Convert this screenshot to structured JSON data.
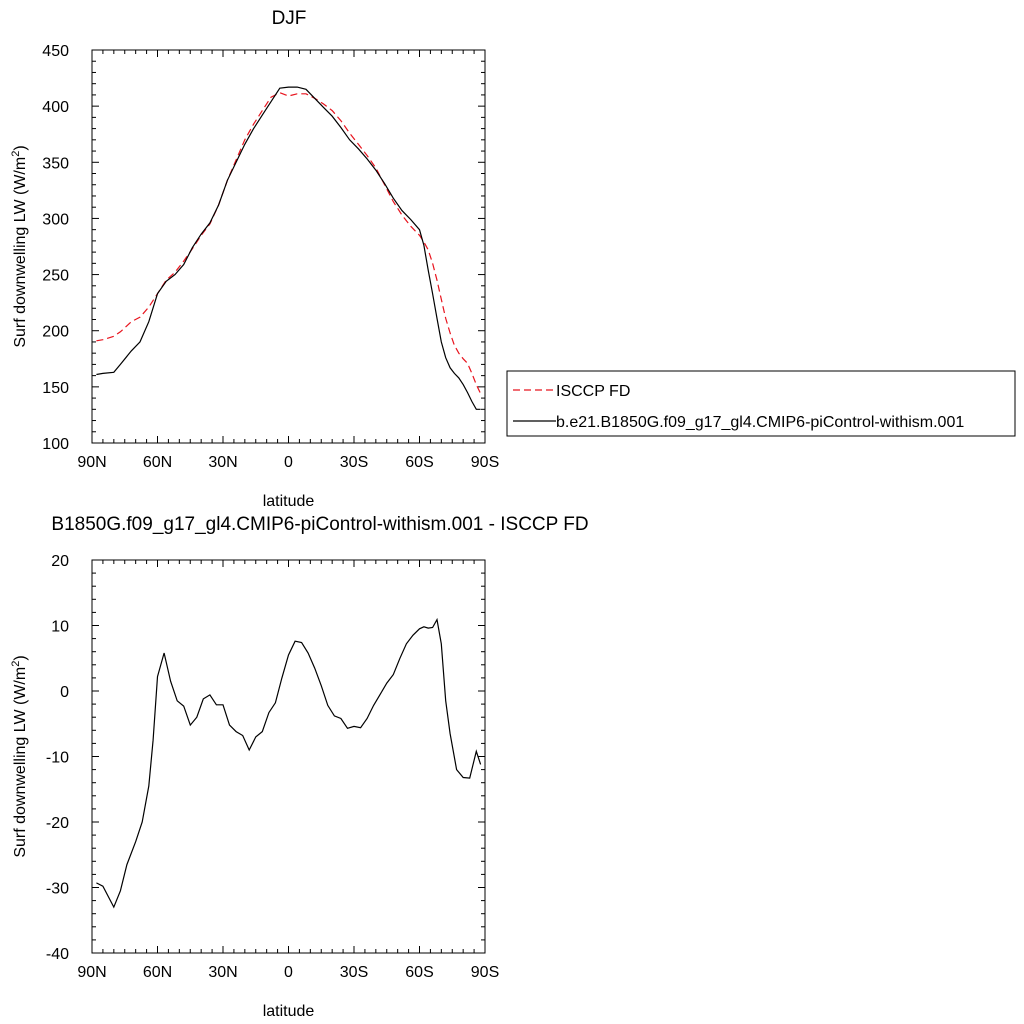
{
  "chart_data": [
    {
      "type": "line",
      "title": "DJF",
      "xlabel": "latitude",
      "ylabel": "Surf downwelling LW (W/m²)",
      "xlim": [
        -90,
        90
      ],
      "ylim": [
        100,
        450
      ],
      "x_tick_values": [
        -90,
        -60,
        -30,
        0,
        30,
        60,
        90
      ],
      "x_tick_labels": [
        "90N",
        "60N",
        "30N",
        "0",
        "30S",
        "60S",
        "90S"
      ],
      "y_ticks": [
        100,
        150,
        200,
        250,
        300,
        350,
        400,
        450
      ],
      "legend_position": "right",
      "series": [
        {
          "name": "ISCCP FD",
          "color": "#e8141e",
          "dash": "dashed",
          "x": [
            -88,
            -85,
            -80,
            -77,
            -72,
            -68,
            -64,
            -60,
            -56,
            -52,
            -48,
            -44,
            -40,
            -36,
            -32,
            -28,
            -24,
            -20,
            -16,
            -12,
            -8,
            -4,
            0,
            4,
            8,
            12,
            16,
            20,
            24,
            28,
            32,
            36,
            40,
            44,
            48,
            52,
            56,
            60,
            62,
            64,
            66,
            68,
            70,
            72,
            74,
            76,
            78,
            80,
            82,
            84,
            86,
            88
          ],
          "y": [
            191,
            192,
            195,
            199,
            208,
            212,
            221,
            233,
            245,
            252,
            262,
            273,
            285,
            295,
            312,
            334,
            352,
            370,
            384,
            396,
            408,
            412,
            409,
            411,
            411,
            407,
            402,
            396,
            387,
            376,
            366,
            356,
            345,
            330,
            315,
            303,
            293,
            285,
            279,
            272,
            260,
            245,
            228,
            211,
            198,
            187,
            180,
            175,
            171,
            162,
            152,
            144
          ]
        },
        {
          "name": "b.e21.B1850G.f09_g17_gl4.CMIP6-piControl-withism.001",
          "color": "#000000",
          "dash": "solid",
          "x": [
            -88,
            -85,
            -80,
            -77,
            -72,
            -68,
            -64,
            -60,
            -56,
            -52,
            -48,
            -44,
            -40,
            -36,
            -32,
            -28,
            -24,
            -20,
            -16,
            -12,
            -8,
            -4,
            0,
            4,
            8,
            12,
            16,
            20,
            24,
            28,
            32,
            36,
            40,
            44,
            48,
            52,
            56,
            60,
            62,
            64,
            66,
            68,
            70,
            72,
            74,
            76,
            78,
            80,
            82,
            84,
            86,
            88
          ],
          "y": [
            161,
            162,
            163,
            170,
            182,
            190,
            208,
            233,
            244,
            250,
            259,
            274,
            286,
            296,
            312,
            334,
            350,
            366,
            380,
            392,
            404,
            416,
            417,
            417,
            415,
            407,
            399,
            391,
            381,
            370,
            362,
            353,
            343,
            331,
            318,
            307,
            299,
            290,
            276,
            254,
            233,
            211,
            190,
            176,
            167,
            162,
            158,
            152,
            145,
            137,
            130,
            130
          ]
        }
      ]
    },
    {
      "type": "line",
      "title": "B1850G.f09_g17_gl4.CMIP6-piControl-withism.001 - ISCCP FD",
      "xlabel": "latitude",
      "ylabel": "Surf downwelling LW (W/m²)",
      "xlim": [
        -90,
        90
      ],
      "ylim": [
        -40,
        20
      ],
      "x_tick_values": [
        -90,
        -60,
        -30,
        0,
        30,
        60,
        90
      ],
      "x_tick_labels": [
        "90N",
        "60N",
        "30N",
        "0",
        "30S",
        "60S",
        "90S"
      ],
      "y_ticks": [
        -40,
        -30,
        -20,
        -10,
        0,
        10,
        20
      ],
      "series": [
        {
          "color": "#000000",
          "dash": "solid",
          "x": [
            -88,
            -85,
            -80,
            -77,
            -74,
            -70,
            -67,
            -64,
            -62,
            -60,
            -57,
            -54,
            -51,
            -48,
            -45,
            -42,
            -39,
            -36,
            -33,
            -30,
            -27,
            -24,
            -21,
            -18,
            -15,
            -12,
            -9,
            -6,
            -3,
            0,
            3,
            6,
            9,
            12,
            15,
            18,
            21,
            24,
            27,
            30,
            33,
            36,
            39,
            42,
            45,
            48,
            51,
            54,
            57,
            60,
            62,
            64,
            66,
            68,
            70,
            72,
            74,
            77,
            80,
            83,
            86,
            88
          ],
          "y": [
            -29.3,
            -29.8,
            -33,
            -30.5,
            -26.5,
            -23,
            -20,
            -14.5,
            -7.5,
            2.2,
            5.8,
            1.5,
            -1.5,
            -2.3,
            -5.2,
            -4,
            -1.2,
            -0.6,
            -2.1,
            -2.1,
            -5.2,
            -6.2,
            -6.8,
            -9,
            -7,
            -6.2,
            -3.3,
            -1.8,
            2,
            5.5,
            7.6,
            7.4,
            5.8,
            3.5,
            0.8,
            -2.2,
            -3.8,
            -4.2,
            -5.7,
            -5.4,
            -5.6,
            -4.2,
            -2.2,
            -0.5,
            1.2,
            2.5,
            5,
            7.2,
            8.5,
            9.5,
            9.8,
            9.6,
            9.7,
            10.9,
            7.2,
            -1.5,
            -6.5,
            -12,
            -13.2,
            -13.3,
            -9.2,
            -11.2
          ]
        }
      ]
    }
  ]
}
